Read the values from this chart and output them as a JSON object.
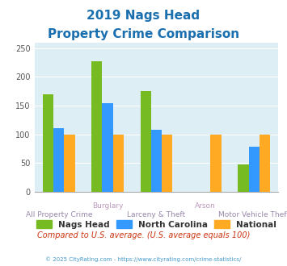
{
  "title_line1": "2019 Nags Head",
  "title_line2": "Property Crime Comparison",
  "title_color": "#1a6faf",
  "groups": [
    "All Property Crime",
    "Burglary",
    "Larceny & Theft",
    "Arson",
    "Motor Vehicle Theft"
  ],
  "labels_row1": [
    "",
    "Burglary",
    "",
    "Arson",
    ""
  ],
  "labels_row2": [
    "All Property Crime",
    "",
    "Larceny & Theft",
    "",
    "Motor Vehicle Theft"
  ],
  "nags_head": [
    170,
    228,
    176,
    null,
    47
  ],
  "north_carolina": [
    110,
    154,
    108,
    null,
    78
  ],
  "national": [
    100,
    100,
    100,
    100,
    100
  ],
  "nags_head_color": "#77bb22",
  "nc_color": "#3399ff",
  "national_color": "#ffaa22",
  "ylim": [
    0,
    260
  ],
  "yticks": [
    0,
    50,
    100,
    150,
    200,
    250
  ],
  "plot_bg": "#ddeef5",
  "fig_bg": "#ffffff",
  "xlabel_color_row1": "#bb99bb",
  "xlabel_color_row2": "#9988aa",
  "footer_text": "© 2025 CityRating.com - https://www.cityrating.com/crime-statistics/",
  "footer_color": "#4499cc",
  "note_text": "Compared to U.S. average. (U.S. average equals 100)",
  "note_color": "#cc3311",
  "legend_labels": [
    "Nags Head",
    "North Carolina",
    "National"
  ],
  "legend_text_color": "#333333"
}
